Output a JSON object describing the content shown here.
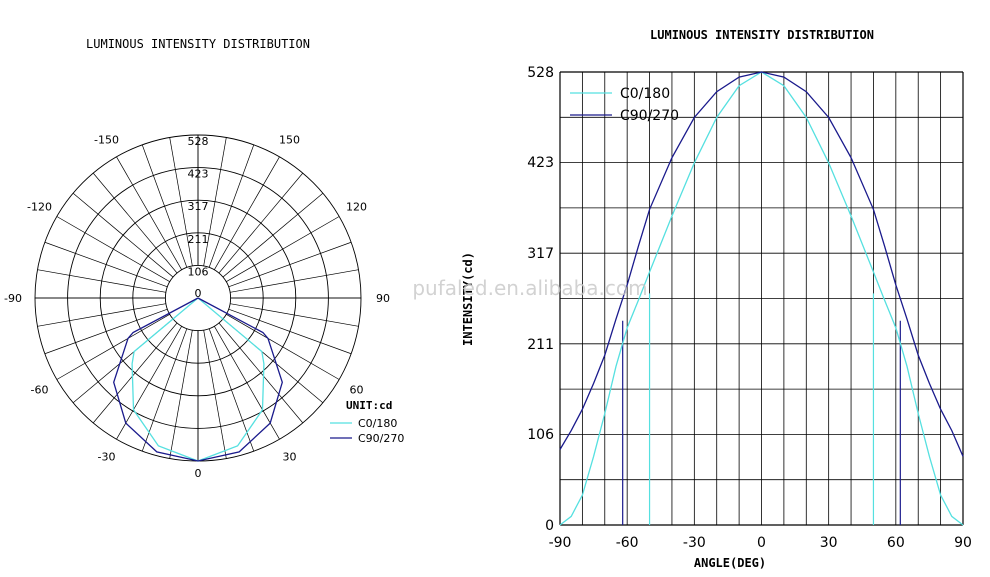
{
  "polar": {
    "title": "LUMINOUS INTENSITY DISTRIBUTION",
    "ring_labels": [
      "106",
      "211",
      "317",
      "423",
      "528"
    ],
    "angle_labels": [
      {
        "deg": -150,
        "text": "-150"
      },
      {
        "deg": 150,
        "text": "150"
      },
      {
        "deg": -120,
        "text": "-120"
      },
      {
        "deg": 120,
        "text": "120"
      },
      {
        "deg": -90,
        "text": "-90"
      },
      {
        "deg": 90,
        "text": "90"
      },
      {
        "deg": -60,
        "text": "-60"
      },
      {
        "deg": 60,
        "text": "60"
      },
      {
        "deg": -30,
        "text": "-30"
      },
      {
        "deg": 30,
        "text": "30"
      },
      {
        "deg": 0,
        "text": "0"
      }
    ],
    "center_label": "0",
    "unit": "UNIT:cd",
    "legend": [
      "C0/180",
      "C90/270"
    ]
  },
  "cartesian": {
    "title": "LUMINOUS INTENSITY DISTRIBUTION",
    "xlabel": "ANGLE(DEG)",
    "ylabel": "INTENSITY(cd)",
    "xticks": [
      "-90",
      "-60",
      "-30",
      "0",
      "30",
      "60",
      "90"
    ],
    "yticks": [
      "0",
      "106",
      "211",
      "317",
      "423",
      "528"
    ],
    "legend": [
      "C0/180",
      "C90/270"
    ]
  },
  "watermark": "pufaled.en.alibaba.com",
  "colors": {
    "c0_180": "#55e0e0",
    "c90_270": "#1a1a8c",
    "grid": "#000000"
  },
  "chart_data": [
    {
      "type": "line",
      "projection": "polar",
      "title": "LUMINOUS INTENSITY DISTRIBUTION",
      "unit": "cd",
      "r_range": [
        0,
        528
      ],
      "angle_range": [
        -180,
        180
      ],
      "series": [
        {
          "name": "C0/180",
          "x": [
            -90,
            -75,
            -60,
            -52,
            -50,
            -45,
            -30,
            -15,
            0,
            15,
            30,
            45,
            50,
            52,
            60,
            75,
            90
          ],
          "values": [
            0,
            0,
            0,
            0,
            270,
            302,
            418,
            496,
            528,
            496,
            418,
            302,
            270,
            0,
            0,
            0,
            0
          ]
        },
        {
          "name": "C90/270",
          "x": [
            -90,
            -75,
            -65,
            -62,
            -60,
            -45,
            -30,
            -15,
            0,
            15,
            30,
            45,
            60,
            62,
            65,
            75,
            90
          ],
          "values": [
            0,
            0,
            0,
            238,
            262,
            386,
            468,
            516,
            528,
            516,
            468,
            386,
            262,
            238,
            0,
            0,
            0
          ]
        }
      ]
    },
    {
      "type": "line",
      "title": "LUMINOUS INTENSITY DISTRIBUTION",
      "xlabel": "ANGLE(DEG)",
      "ylabel": "INTENSITY(cd)",
      "xlim": [
        -90,
        90
      ],
      "ylim": [
        0,
        528
      ],
      "grid": true,
      "legend_position": "top-left",
      "series": [
        {
          "name": "C0/180",
          "x": [
            -90,
            -85,
            -80,
            -75,
            -70,
            -65,
            -60,
            -55,
            -50,
            -40,
            -30,
            -20,
            -10,
            0,
            10,
            20,
            30,
            40,
            50,
            55,
            60,
            65,
            70,
            75,
            80,
            85,
            90
          ],
          "values": [
            0,
            10,
            35,
            80,
            130,
            185,
            230,
            262,
            295,
            360,
            422,
            475,
            512,
            528,
            512,
            475,
            422,
            360,
            295,
            262,
            230,
            185,
            130,
            80,
            35,
            10,
            0
          ]
        },
        {
          "name": "C90/270",
          "x": [
            -90,
            -85,
            -80,
            -75,
            -70,
            -65,
            -60,
            -55,
            -50,
            -40,
            -30,
            -20,
            -10,
            0,
            10,
            20,
            30,
            40,
            50,
            55,
            60,
            65,
            70,
            75,
            80,
            85,
            90
          ],
          "values": [
            88,
            110,
            135,
            165,
            198,
            240,
            280,
            325,
            368,
            428,
            475,
            505,
            522,
            528,
            522,
            505,
            475,
            428,
            368,
            325,
            280,
            240,
            198,
            165,
            135,
            110,
            80
          ]
        }
      ]
    }
  ]
}
